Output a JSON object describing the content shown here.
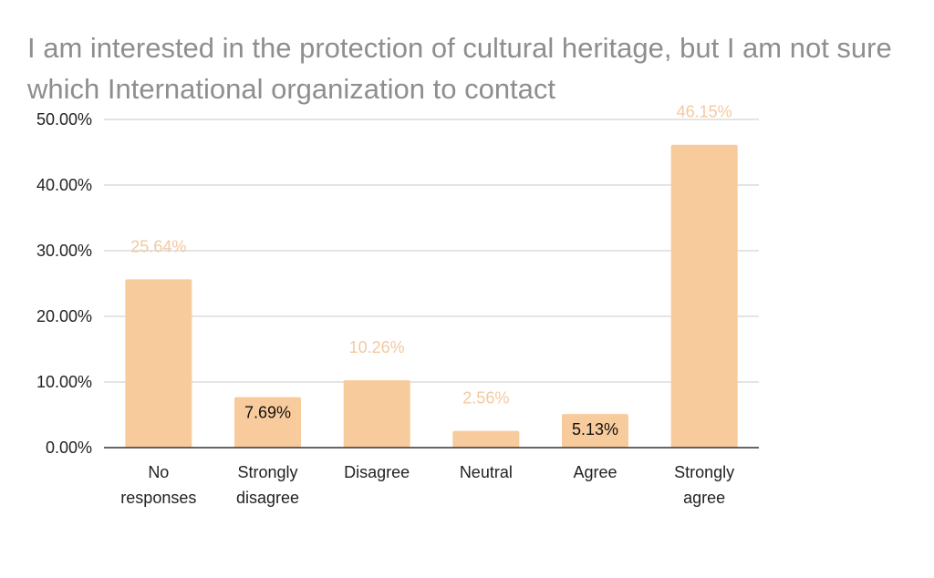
{
  "chart_data": {
    "type": "bar",
    "title": "I am interested in the protection of cultural heritage, but I am not sure which International organization to contact",
    "categories": [
      [
        "No",
        "responses"
      ],
      [
        "Strongly",
        "disagree"
      ],
      [
        "Disagree"
      ],
      [
        "Neutral"
      ],
      [
        "Agree"
      ],
      [
        "Strongly",
        "agree"
      ]
    ],
    "values": [
      25.64,
      7.69,
      10.26,
      2.56,
      5.13,
      46.15
    ],
    "data_labels": [
      "25.64%",
      "7.69%",
      "10.26%",
      "2.56%",
      "5.13%",
      "46.15%"
    ],
    "data_label_inside": [
      false,
      true,
      false,
      false,
      true,
      false
    ],
    "yticks": [
      "0.00%",
      "10.00%",
      "20.00%",
      "30.00%",
      "40.00%",
      "50.00%"
    ],
    "ylim": [
      0,
      50
    ],
    "grid": true,
    "legend": "none",
    "bar_color": "#f8cb9c",
    "label_outside_color": "#f3c9a0",
    "label_inside_color": "#111111",
    "gridline_color": "#c8c8c8",
    "axis_color": "#333333"
  }
}
